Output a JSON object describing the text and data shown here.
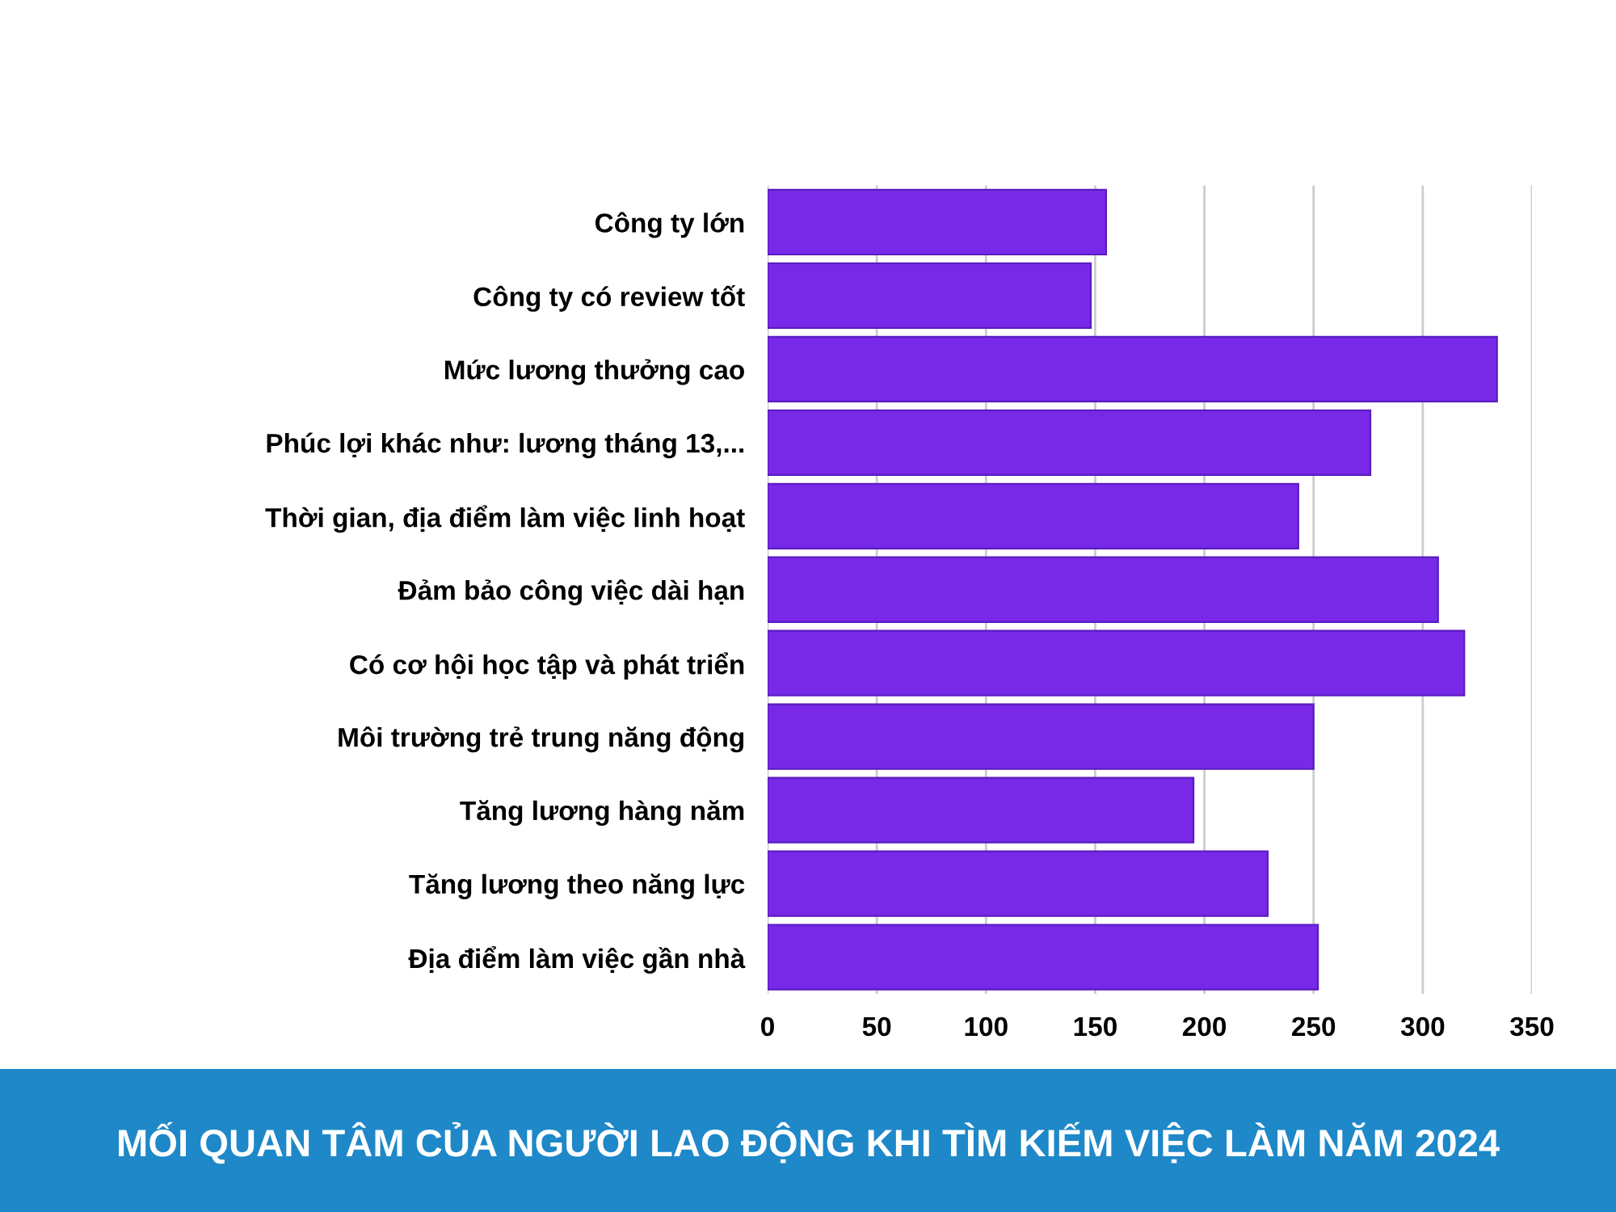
{
  "chart_data": {
    "type": "bar",
    "orientation": "horizontal",
    "title": "MỐI QUAN TÂM CỦA NGƯỜI LAO ĐỘNG KHI TÌM KIẾM VIỆC LÀM NĂM 2024",
    "categories": [
      "Công ty lớn",
      "Công ty có review tốt",
      "Mức lương thưởng cao",
      "Phúc lợi khác như: lương tháng 13,...",
      "Thời gian, địa điểm làm việc linh hoạt",
      "Đảm bảo công việc dài hạn",
      "Có cơ hội học tập và phát triển",
      "Môi trường trẻ trung năng động",
      "Tăng lương hàng năm",
      "Tăng lương theo năng lực",
      "Địa điểm làm việc gần nhà"
    ],
    "values": [
      155,
      148,
      334,
      276,
      243,
      307,
      319,
      250,
      195,
      229,
      252
    ],
    "color": "#7829e8",
    "xlim": [
      0,
      350
    ],
    "xticks": [
      0,
      50,
      100,
      150,
      200,
      250,
      300,
      350
    ],
    "grid": "x"
  }
}
